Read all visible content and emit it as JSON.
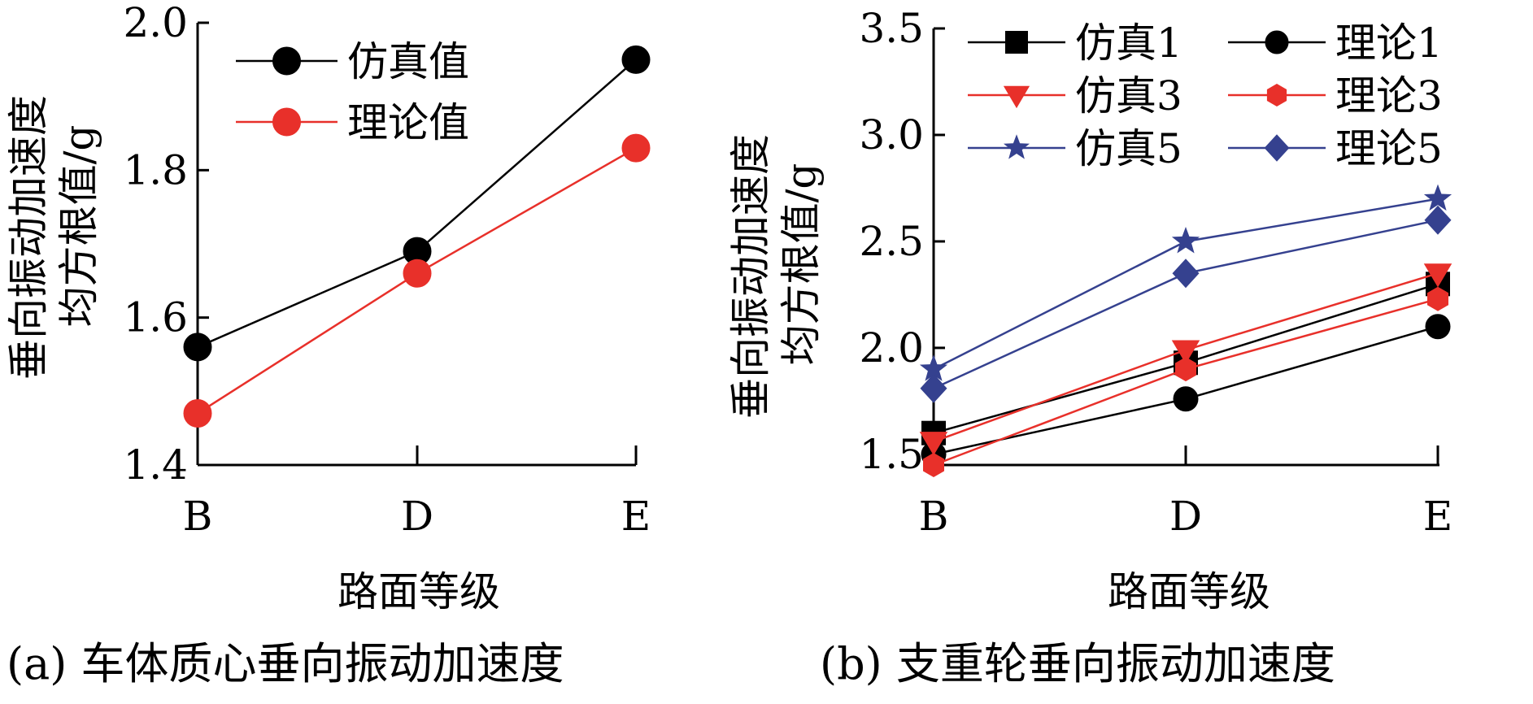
{
  "chart_data": [
    {
      "type": "line",
      "panel": "a",
      "caption": "(a) 车体质心垂向振动加速度",
      "xlabel": "路面等级",
      "ylabel_line1": "垂向振动加速度",
      "ylabel_line2": "均方根值/g",
      "categories": [
        "B",
        "D",
        "E"
      ],
      "ylim": [
        1.4,
        2.0
      ],
      "yticks": [
        "1.4",
        "1.6",
        "1.8",
        "2.0"
      ],
      "ytick_values": [
        1.4,
        1.6,
        1.8,
        2.0
      ],
      "legend_position": "top-left",
      "series": [
        {
          "name": "仿真值",
          "color": "#000000",
          "marker": "circle",
          "values": [
            1.56,
            1.69,
            1.95
          ]
        },
        {
          "name": "理论值",
          "color": "#e8302a",
          "marker": "circle",
          "values": [
            1.47,
            1.66,
            1.83
          ]
        }
      ]
    },
    {
      "type": "line",
      "panel": "b",
      "caption": "(b) 支重轮垂向振动加速度",
      "xlabel": "路面等级",
      "ylabel_line1": "垂向振动加速度",
      "ylabel_line2": "均方根值/g",
      "categories": [
        "B",
        "D",
        "E"
      ],
      "ylim": [
        1.45,
        3.5
      ],
      "yticks": [
        "1.5",
        "2.0",
        "2.5",
        "3.0",
        "3.5"
      ],
      "ytick_values": [
        1.5,
        2.0,
        2.5,
        3.0,
        3.5
      ],
      "legend_position": "top",
      "series": [
        {
          "name": "仿真1",
          "color": "#000000",
          "marker": "square",
          "values": [
            1.6,
            1.93,
            2.3
          ]
        },
        {
          "name": "理论1",
          "color": "#000000",
          "marker": "circle",
          "values": [
            1.5,
            1.76,
            2.1
          ]
        },
        {
          "name": "仿真3",
          "color": "#e8302a",
          "marker": "triangle-down",
          "values": [
            1.56,
            1.99,
            2.35
          ]
        },
        {
          "name": "理论3",
          "color": "#e8302a",
          "marker": "hexagon",
          "values": [
            1.45,
            1.9,
            2.23
          ]
        },
        {
          "name": "仿真5",
          "color": "#35418f",
          "marker": "star",
          "values": [
            1.9,
            2.5,
            2.7
          ]
        },
        {
          "name": "理论5",
          "color": "#35418f",
          "marker": "diamond",
          "values": [
            1.81,
            2.35,
            2.6
          ]
        }
      ]
    }
  ]
}
